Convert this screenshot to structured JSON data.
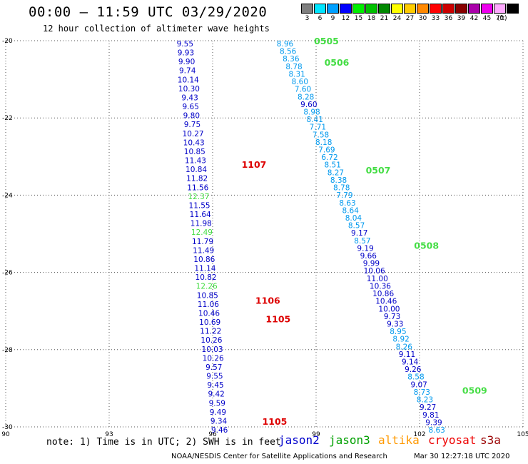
{
  "header": {
    "title": "00:00 – 11:59 UTC 03/29/2020",
    "subtitle": "12 hour collection of altimeter wave heights"
  },
  "color_scale": {
    "unit": "(ft)",
    "bins": [
      {
        "label": "3",
        "color": "#7f7f7f"
      },
      {
        "label": "6",
        "color": "#00e5ff"
      },
      {
        "label": "9",
        "color": "#00a0ff"
      },
      {
        "label": "12",
        "color": "#0000ff"
      },
      {
        "label": "15",
        "color": "#00ee00"
      },
      {
        "label": "18",
        "color": "#00c000"
      },
      {
        "label": "21",
        "color": "#008800"
      },
      {
        "label": "24",
        "color": "#ffff00"
      },
      {
        "label": "27",
        "color": "#ffcc00"
      },
      {
        "label": "30",
        "color": "#ff8800"
      },
      {
        "label": "33",
        "color": "#ff0000"
      },
      {
        "label": "36",
        "color": "#cc0000"
      },
      {
        "label": "39",
        "color": "#880000"
      },
      {
        "label": "42",
        "color": "#aa00aa"
      },
      {
        "label": "45",
        "color": "#ee00ee"
      },
      {
        "label": "70",
        "color": "#ffaaff"
      },
      {
        "label": "",
        "color": "#000000"
      }
    ]
  },
  "chart_data": {
    "type": "scatter",
    "title": "00:00 – 11:59 UTC 03/29/2020",
    "subtitle": "12 hour collection of altimeter wave heights",
    "xlabel": "",
    "ylabel": "",
    "xlim": [
      90,
      105
    ],
    "ylim": [
      -30,
      -20
    ],
    "xticks": [
      "90",
      "93",
      "96",
      "99",
      "102",
      "105"
    ],
    "yticks": [
      "-20",
      "-22",
      "-24",
      "-26",
      "-28",
      "-30"
    ],
    "grid": true,
    "colors": {
      "dark": "#0000c8",
      "light": "#0099ee",
      "green": "#44dd44",
      "label_red": "#dd0000",
      "label_green": "#008800"
    },
    "tracks": [
      {
        "x_start": 95.2,
        "x_end": 96.2,
        "points": [
          {
            "v": "9.55",
            "c": "dark"
          },
          {
            "v": "9.93",
            "c": "dark"
          },
          {
            "v": "9.90",
            "c": "dark"
          },
          {
            "v": "9.74",
            "c": "dark"
          },
          {
            "v": "10.14",
            "c": "dark"
          },
          {
            "v": "10.30",
            "c": "dark"
          },
          {
            "v": "9.43",
            "c": "dark"
          },
          {
            "v": "9.65",
            "c": "dark"
          },
          {
            "v": "9.80",
            "c": "dark"
          },
          {
            "v": "9.75",
            "c": "dark"
          },
          {
            "v": "10.27",
            "c": "dark"
          },
          {
            "v": "10.43",
            "c": "dark"
          },
          {
            "v": "10.85",
            "c": "dark"
          },
          {
            "v": "11.43",
            "c": "dark"
          },
          {
            "v": "10.84",
            "c": "dark"
          },
          {
            "v": "11.82",
            "c": "dark"
          },
          {
            "v": "11.56",
            "c": "dark"
          },
          {
            "v": "12.37",
            "c": "green"
          },
          {
            "v": "11.55",
            "c": "dark"
          },
          {
            "v": "11.64",
            "c": "dark"
          },
          {
            "v": "11.98",
            "c": "dark"
          },
          {
            "v": "12.49",
            "c": "green"
          },
          {
            "v": "11.79",
            "c": "dark"
          },
          {
            "v": "11.49",
            "c": "dark"
          },
          {
            "v": "10.86",
            "c": "dark"
          },
          {
            "v": "11.14",
            "c": "dark"
          },
          {
            "v": "10.82",
            "c": "dark"
          },
          {
            "v": "12.26",
            "c": "green"
          },
          {
            "v": "10.85",
            "c": "dark"
          },
          {
            "v": "11.06",
            "c": "dark"
          },
          {
            "v": "10.46",
            "c": "dark"
          },
          {
            "v": "10.69",
            "c": "dark"
          },
          {
            "v": "11.22",
            "c": "dark"
          },
          {
            "v": "10.26",
            "c": "dark"
          },
          {
            "v": "10.03",
            "c": "dark"
          },
          {
            "v": "10.26",
            "c": "dark"
          },
          {
            "v": "9.57",
            "c": "dark"
          },
          {
            "v": "9.55",
            "c": "dark"
          },
          {
            "v": "9.45",
            "c": "dark"
          },
          {
            "v": "9.42",
            "c": "dark"
          },
          {
            "v": "9.59",
            "c": "dark"
          },
          {
            "v": "9.49",
            "c": "dark"
          },
          {
            "v": "9.34",
            "c": "dark"
          },
          {
            "v": "9.46",
            "c": "dark"
          }
        ]
      },
      {
        "x_start": 98.1,
        "x_end": 102.5,
        "points": [
          {
            "v": "8.96",
            "c": "light"
          },
          {
            "v": "8.56",
            "c": "light"
          },
          {
            "v": "8.36",
            "c": "light"
          },
          {
            "v": "8.78",
            "c": "light"
          },
          {
            "v": "8.31",
            "c": "light"
          },
          {
            "v": "8.60",
            "c": "light"
          },
          {
            "v": "7.60",
            "c": "light"
          },
          {
            "v": "8.28",
            "c": "light"
          },
          {
            "v": "9.60",
            "c": "dark"
          },
          {
            "v": "8.98",
            "c": "light"
          },
          {
            "v": "8.41",
            "c": "light"
          },
          {
            "v": "7.71",
            "c": "light"
          },
          {
            "v": "7.58",
            "c": "light"
          },
          {
            "v": "8.18",
            "c": "light"
          },
          {
            "v": "7.69",
            "c": "light"
          },
          {
            "v": "6.72",
            "c": "light"
          },
          {
            "v": "8.51",
            "c": "light"
          },
          {
            "v": "8.27",
            "c": "light"
          },
          {
            "v": "8.38",
            "c": "light"
          },
          {
            "v": "8.78",
            "c": "light"
          },
          {
            "v": "7.79",
            "c": "light"
          },
          {
            "v": "8.63",
            "c": "light"
          },
          {
            "v": "8.64",
            "c": "light"
          },
          {
            "v": "8.04",
            "c": "light"
          },
          {
            "v": "8.57",
            "c": "light"
          },
          {
            "v": "9.17",
            "c": "dark"
          },
          {
            "v": "8.57",
            "c": "light"
          },
          {
            "v": "9.19",
            "c": "dark"
          },
          {
            "v": "9.66",
            "c": "dark"
          },
          {
            "v": "9.99",
            "c": "dark"
          },
          {
            "v": "10.06",
            "c": "dark"
          },
          {
            "v": "11.00",
            "c": "dark"
          },
          {
            "v": "10.36",
            "c": "dark"
          },
          {
            "v": "10.86",
            "c": "dark"
          },
          {
            "v": "10.46",
            "c": "dark"
          },
          {
            "v": "10.00",
            "c": "dark"
          },
          {
            "v": "9.73",
            "c": "dark"
          },
          {
            "v": "9.33",
            "c": "dark"
          },
          {
            "v": "8.95",
            "c": "light"
          },
          {
            "v": "8.92",
            "c": "light"
          },
          {
            "v": "8.26",
            "c": "light"
          },
          {
            "v": "9.11",
            "c": "dark"
          },
          {
            "v": "9.14",
            "c": "dark"
          },
          {
            "v": "9.26",
            "c": "dark"
          },
          {
            "v": "8.58",
            "c": "light"
          },
          {
            "v": "9.07",
            "c": "dark"
          },
          {
            "v": "8.73",
            "c": "light"
          },
          {
            "v": "8.23",
            "c": "light"
          },
          {
            "v": "9.27",
            "c": "dark"
          },
          {
            "v": "9.81",
            "c": "dark"
          },
          {
            "v": "9.39",
            "c": "dark"
          },
          {
            "v": "8.63",
            "c": "light"
          }
        ]
      }
    ],
    "time_labels": [
      {
        "text": "0505",
        "x": 99.3,
        "y": -20.0,
        "color": "green"
      },
      {
        "text": "0506",
        "x": 99.6,
        "y": -20.55,
        "color": "green"
      },
      {
        "text": "0507",
        "x": 100.8,
        "y": -23.35,
        "color": "green"
      },
      {
        "text": "0508",
        "x": 102.2,
        "y": -25.3,
        "color": "green"
      },
      {
        "text": "0509",
        "x": 103.6,
        "y": -29.05,
        "color": "green"
      },
      {
        "text": "1107",
        "x": 97.2,
        "y": -23.2,
        "color": "label_red"
      },
      {
        "text": "1106",
        "x": 97.6,
        "y": -26.72,
        "color": "label_red"
      },
      {
        "text": "1105",
        "x": 97.9,
        "y": -27.2,
        "color": "label_red"
      },
      {
        "text": "1105",
        "x": 97.8,
        "y": -29.85,
        "color": "label_red"
      }
    ]
  },
  "note": "note: 1) Time is in UTC; 2) SWH is in feet",
  "satellite_legend": [
    {
      "name": "jason2",
      "color": "#0000cc"
    },
    {
      "name": "jason3",
      "color": "#00a000"
    },
    {
      "name": "altika",
      "color": "#ff9900"
    },
    {
      "name": "cryosat",
      "color": "#ee0000"
    },
    {
      "name": "s3a",
      "color": "#990000"
    }
  ],
  "footer": {
    "credit": "NOAA/NESDIS Center for Satellite Applications and Research",
    "timestamp": "Mar 30 12:27:18 UTC 2020"
  }
}
